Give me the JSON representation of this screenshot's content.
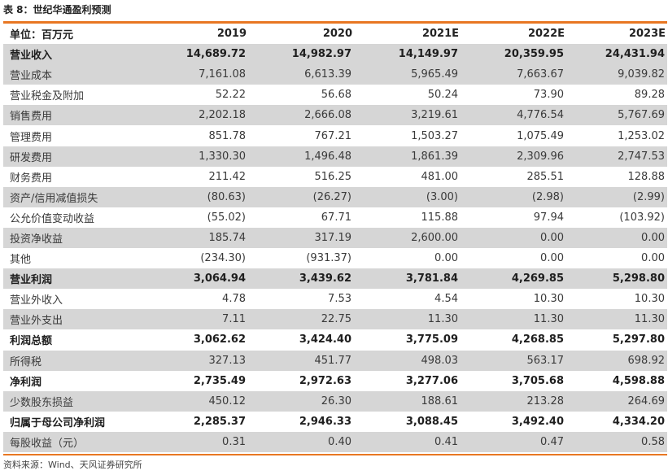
{
  "caption": "表 8：世纪华通盈利预测",
  "header": {
    "unit_label": "单位：百万元",
    "years": [
      "2019",
      "2020",
      "2021E",
      "2022E",
      "2023E"
    ]
  },
  "rows": [
    {
      "label": "营业收入",
      "values": [
        "14,689.72",
        "14,982.97",
        "14,149.97",
        "20,359.95",
        "24,431.94"
      ],
      "bold": true,
      "shaded": true
    },
    {
      "label": "营业成本",
      "values": [
        "7,161.08",
        "6,613.39",
        "5,965.49",
        "7,663.67",
        "9,039.82"
      ],
      "bold": false,
      "shaded": true
    },
    {
      "label": "营业税金及附加",
      "values": [
        "52.22",
        "56.68",
        "50.24",
        "73.90",
        "89.28"
      ],
      "bold": false,
      "shaded": false
    },
    {
      "label": "销售费用",
      "values": [
        "2,202.18",
        "2,666.08",
        "3,219.61",
        "4,776.54",
        "5,767.69"
      ],
      "bold": false,
      "shaded": true
    },
    {
      "label": "管理费用",
      "values": [
        "851.78",
        "767.21",
        "1,503.27",
        "1,075.49",
        "1,253.02"
      ],
      "bold": false,
      "shaded": false
    },
    {
      "label": "研发费用",
      "values": [
        "1,330.30",
        "1,496.48",
        "1,861.39",
        "2,309.96",
        "2,747.53"
      ],
      "bold": false,
      "shaded": true
    },
    {
      "label": "财务费用",
      "values": [
        "211.42",
        "516.25",
        "481.00",
        "285.51",
        "128.88"
      ],
      "bold": false,
      "shaded": false
    },
    {
      "label": "资产/信用减值损失",
      "values": [
        "(80.63)",
        "(26.27)",
        "(3.00)",
        "(2.98)",
        "(2.99)"
      ],
      "bold": false,
      "shaded": true
    },
    {
      "label": "公允价值变动收益",
      "values": [
        "(55.02)",
        "67.71",
        "115.88",
        "97.94",
        "(103.92)"
      ],
      "bold": false,
      "shaded": false
    },
    {
      "label": "投资净收益",
      "values": [
        "185.74",
        "317.19",
        "2,600.00",
        "0.00",
        "0.00"
      ],
      "bold": false,
      "shaded": true
    },
    {
      "label": "其他",
      "values": [
        "(234.30)",
        "(931.37)",
        "0.00",
        "0.00",
        "0.00"
      ],
      "bold": false,
      "shaded": false
    },
    {
      "label": "营业利润",
      "values": [
        "3,064.94",
        "3,439.62",
        "3,781.84",
        "4,269.85",
        "5,298.80"
      ],
      "bold": true,
      "shaded": true
    },
    {
      "label": "营业外收入",
      "values": [
        "4.78",
        "7.53",
        "4.54",
        "10.30",
        "10.30"
      ],
      "bold": false,
      "shaded": false
    },
    {
      "label": "营业外支出",
      "values": [
        "7.11",
        "22.75",
        "11.30",
        "11.30",
        "11.30"
      ],
      "bold": false,
      "shaded": true
    },
    {
      "label": "利润总额",
      "values": [
        "3,062.62",
        "3,424.40",
        "3,775.09",
        "4,268.85",
        "5,297.80"
      ],
      "bold": true,
      "shaded": false
    },
    {
      "label": "所得税",
      "values": [
        "327.13",
        "451.77",
        "498.03",
        "563.17",
        "698.92"
      ],
      "bold": false,
      "shaded": true
    },
    {
      "label": "净利润",
      "values": [
        "2,735.49",
        "2,972.63",
        "3,277.06",
        "3,705.68",
        "4,598.88"
      ],
      "bold": true,
      "shaded": false
    },
    {
      "label": "少数股东损益",
      "values": [
        "450.12",
        "26.30",
        "188.61",
        "213.28",
        "264.69"
      ],
      "bold": false,
      "shaded": true
    },
    {
      "label": "归属于母公司净利润",
      "values": [
        "2,285.37",
        "2,946.33",
        "3,088.45",
        "3,492.40",
        "4,334.20"
      ],
      "bold": true,
      "shaded": false
    },
    {
      "label": "每股收益（元）",
      "values": [
        "0.31",
        "0.40",
        "0.41",
        "0.47",
        "0.58"
      ],
      "bold": false,
      "shaded": true
    }
  ],
  "source": "资料来源：Wind、天风证券研究所",
  "colors": {
    "accent": "#e87722",
    "row_shade": "#d6d6d6"
  }
}
